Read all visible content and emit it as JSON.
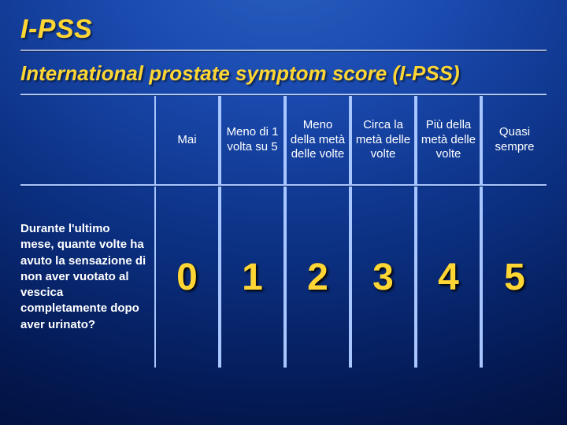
{
  "slide": {
    "title": "I-PSS",
    "subtitle": "International prostate symptom score (I-PSS)"
  },
  "table": {
    "type": "table",
    "headers": [
      "Mai",
      "Meno di 1 volta su 5",
      "Meno della metà delle volte",
      "Circa la metà delle volte",
      "Più della metà delle volte",
      "Quasi sempre"
    ],
    "question": "Durante l'ultimo mese, quante volte ha avuto la sensazione di non aver vuotato al vescica completamente dopo aver urinato?",
    "values": [
      "0",
      "1",
      "2",
      "3",
      "4",
      "5"
    ]
  },
  "style": {
    "title_color": "#ffd633",
    "text_color": "#ffffff",
    "border_color": "#a8c6ff",
    "number_color": "#ffd633",
    "number_shadow": "#000000",
    "title_fontsize": 34,
    "subtitle_fontsize": 26,
    "header_fontsize": 15,
    "question_fontsize": 15,
    "number_fontsize": 48,
    "background_gradient": [
      "#2a5fbf",
      "#1a4aaf",
      "#0b2f80",
      "#041a55",
      "#020f38"
    ]
  }
}
